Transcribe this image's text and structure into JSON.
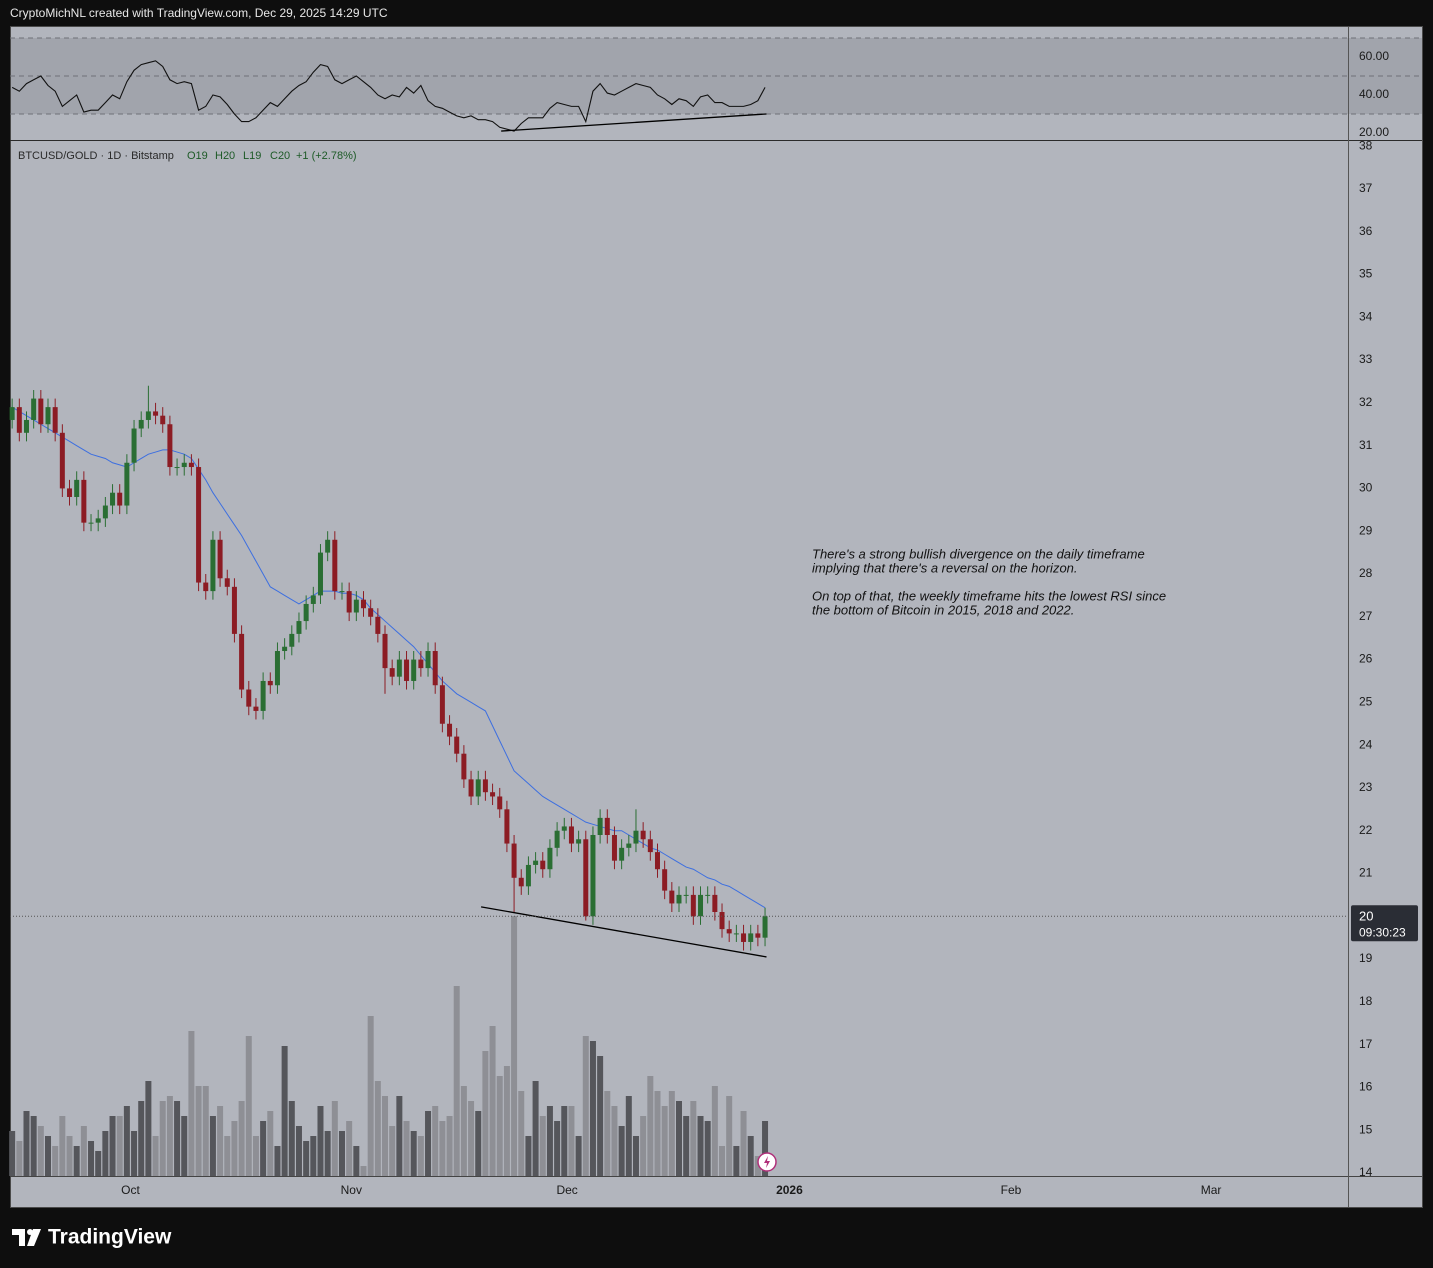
{
  "header": "CryptoMichNL created with TradingView.com, Dec 29, 2025 14:29 UTC",
  "footer_brand": "TradingView",
  "chart_data": {
    "type": "candlestick",
    "symbol": "BTCUSD/GOLD · 1D · Bitstamp",
    "legend_values": [
      "O19",
      "H20",
      "L19",
      "C20",
      "+1 (+2.78%)"
    ],
    "last_price_label": [
      "20",
      "09:30:23"
    ],
    "annotation": [
      "There's a strong bullish divergence on the daily timeframe",
      "implying that there's a reversal on the horizon.",
      "On top of that, the weekly timeframe hits the lowest RSI since",
      "the bottom of Bitcoin in 2015, 2018 and 2022."
    ],
    "colors": {
      "up": "#2a6e33",
      "down": "#8c1c24",
      "ma": "#3d6fe0",
      "volume_up": "#55565b",
      "volume_down": "#8e8f95",
      "rsi": "#111111"
    },
    "xlim": [
      -0.3,
      186.3
    ],
    "xticks": [
      {
        "value": 16.5,
        "label": "Oct"
      },
      {
        "value": 47.3,
        "label": "Nov"
      },
      {
        "value": 77.4,
        "label": "Dec"
      },
      {
        "value": 108.4,
        "label": "2026"
      },
      {
        "value": 139.3,
        "label": "Feb"
      },
      {
        "value": 167.2,
        "label": "Mar"
      }
    ],
    "ylim": [
      13.93,
      38.12
    ],
    "yticks": [
      14,
      15,
      16,
      17,
      18,
      19,
      20,
      21,
      22,
      23,
      24,
      25,
      26,
      27,
      28,
      29,
      30,
      31,
      32,
      33,
      34,
      35,
      36,
      37,
      38
    ],
    "open": [
      31.6,
      31.9,
      31.3,
      31.6,
      32.1,
      31.5,
      31.9,
      31.3,
      30.0,
      29.8,
      30.2,
      29.2,
      29.2,
      29.3,
      29.6,
      29.9,
      29.6,
      30.6,
      31.4,
      31.6,
      31.8,
      31.7,
      31.5,
      30.5,
      30.5,
      30.6,
      30.5,
      27.8,
      27.6,
      28.8,
      27.9,
      27.7,
      26.6,
      25.3,
      24.9,
      24.8,
      25.5,
      25.4,
      26.2,
      26.3,
      26.6,
      26.9,
      27.3,
      27.5,
      28.5,
      28.8,
      27.6,
      27.6,
      27.1,
      27.4,
      27.2,
      27.0,
      26.6,
      25.8,
      25.6,
      26.0,
      25.5,
      26.0,
      25.8,
      26.2,
      25.4,
      24.5,
      24.2,
      23.8,
      23.2,
      22.8,
      23.2,
      22.9,
      22.8,
      22.5,
      21.7,
      20.9,
      20.7,
      21.2,
      21.3,
      21.1,
      21.6,
      22.0,
      22.1,
      21.7,
      21.8,
      20.0,
      21.9,
      22.3,
      21.9,
      21.3,
      21.6,
      21.7,
      22.0,
      21.8,
      21.5,
      21.1,
      20.6,
      20.3,
      20.5,
      20.5,
      20.0,
      20.5,
      20.5,
      20.1,
      19.7,
      19.6,
      19.6,
      19.4,
      19.6,
      19.5
    ],
    "high": [
      32.1,
      32.1,
      31.8,
      32.3,
      32.3,
      32.1,
      32.1,
      31.5,
      30.2,
      30.4,
      30.4,
      29.4,
      29.5,
      29.8,
      30.1,
      30.1,
      30.8,
      31.6,
      31.8,
      32.4,
      32.0,
      31.9,
      31.7,
      30.7,
      30.8,
      30.8,
      30.7,
      28.0,
      29.0,
      29.0,
      28.1,
      27.9,
      26.8,
      25.5,
      25.1,
      25.7,
      25.7,
      26.4,
      26.5,
      26.8,
      27.1,
      27.5,
      27.7,
      28.7,
      29.0,
      29.0,
      27.8,
      27.8,
      27.6,
      27.6,
      27.4,
      27.2,
      26.8,
      26.0,
      26.2,
      26.2,
      26.2,
      26.2,
      26.4,
      26.4,
      25.6,
      24.7,
      24.4,
      24.0,
      23.4,
      23.4,
      23.4,
      23.1,
      23.0,
      22.7,
      21.9,
      21.1,
      21.4,
      21.5,
      21.5,
      21.8,
      22.2,
      22.3,
      22.3,
      22.0,
      22.0,
      22.1,
      22.5,
      22.5,
      22.1,
      21.8,
      21.9,
      22.5,
      22.2,
      22.0,
      21.7,
      21.3,
      20.8,
      20.7,
      20.7,
      20.7,
      20.7,
      20.7,
      20.7,
      20.3,
      19.9,
      19.8,
      19.8,
      19.8,
      19.8,
      20.2
    ],
    "low": [
      31.4,
      31.1,
      31.1,
      31.4,
      31.3,
      31.3,
      31.1,
      29.8,
      29.6,
      29.6,
      29.0,
      29.0,
      29.0,
      29.1,
      29.4,
      29.4,
      29.4,
      30.4,
      31.2,
      31.4,
      31.5,
      31.3,
      30.3,
      30.3,
      30.3,
      30.3,
      27.6,
      27.4,
      27.4,
      27.7,
      27.5,
      26.4,
      25.1,
      24.7,
      24.6,
      24.6,
      25.2,
      25.2,
      26.0,
      26.1,
      26.4,
      26.7,
      27.1,
      27.3,
      28.3,
      27.4,
      27.4,
      26.9,
      26.9,
      27.0,
      26.8,
      26.4,
      25.2,
      25.4,
      25.4,
      25.3,
      25.3,
      25.6,
      25.6,
      25.2,
      24.3,
      24.0,
      23.6,
      23.0,
      22.6,
      22.6,
      22.7,
      22.6,
      22.3,
      21.5,
      20.1,
      20.5,
      20.5,
      21.0,
      20.9,
      20.9,
      21.4,
      21.8,
      21.5,
      21.5,
      19.9,
      19.8,
      21.7,
      21.7,
      21.1,
      21.1,
      21.4,
      21.5,
      21.6,
      21.3,
      20.9,
      20.4,
      20.1,
      20.1,
      20.3,
      19.8,
      19.8,
      20.3,
      19.9,
      19.5,
      19.4,
      19.4,
      19.2,
      19.2,
      19.3,
      19.3
    ],
    "close": [
      31.9,
      31.3,
      31.6,
      32.1,
      31.5,
      31.9,
      31.3,
      30.0,
      29.8,
      30.2,
      29.2,
      29.2,
      29.3,
      29.6,
      29.9,
      29.6,
      30.6,
      31.4,
      31.6,
      31.8,
      31.7,
      31.5,
      30.5,
      30.5,
      30.6,
      30.5,
      27.8,
      27.6,
      28.8,
      27.9,
      27.7,
      26.6,
      25.3,
      24.9,
      24.8,
      25.5,
      25.4,
      26.2,
      26.3,
      26.6,
      26.9,
      27.3,
      27.5,
      28.5,
      28.8,
      27.6,
      27.6,
      27.1,
      27.4,
      27.2,
      27.0,
      26.6,
      25.8,
      25.6,
      26.0,
      25.5,
      26.0,
      25.8,
      26.2,
      25.4,
      24.5,
      24.2,
      23.8,
      23.2,
      22.8,
      23.2,
      22.9,
      22.8,
      22.5,
      21.7,
      20.9,
      20.7,
      21.2,
      21.3,
      21.1,
      21.6,
      22.0,
      22.1,
      21.7,
      21.8,
      20.0,
      21.9,
      22.3,
      21.9,
      21.3,
      21.6,
      21.7,
      22.0,
      21.8,
      21.5,
      21.1,
      20.6,
      20.3,
      20.5,
      20.5,
      20.0,
      20.5,
      20.5,
      20.1,
      19.7,
      19.6,
      19.6,
      19.4,
      19.6,
      19.5,
      20.0
    ],
    "ma": [
      31.9,
      31.8,
      31.7,
      31.6,
      31.5,
      31.4,
      31.3,
      31.2,
      31.1,
      31.0,
      30.9,
      30.8,
      30.75,
      30.7,
      30.6,
      30.55,
      30.5,
      30.6,
      30.7,
      30.8,
      30.85,
      30.9,
      30.9,
      30.85,
      30.8,
      30.7,
      30.45,
      30.2,
      29.9,
      29.65,
      29.4,
      29.15,
      28.9,
      28.6,
      28.3,
      28.0,
      27.7,
      27.6,
      27.5,
      27.4,
      27.3,
      27.4,
      27.5,
      27.6,
      27.6,
      27.6,
      27.55,
      27.55,
      27.5,
      27.4,
      27.2,
      27.05,
      26.9,
      26.75,
      26.6,
      26.45,
      26.3,
      26.1,
      25.9,
      25.7,
      25.5,
      25.35,
      25.2,
      25.1,
      25.0,
      24.9,
      24.8,
      24.45,
      24.1,
      23.75,
      23.4,
      23.25,
      23.1,
      22.95,
      22.8,
      22.7,
      22.6,
      22.5,
      22.4,
      22.3,
      22.2,
      22.15,
      22.1,
      22.05,
      22.0,
      22.0,
      21.9,
      21.8,
      21.7,
      21.6,
      21.55,
      21.45,
      21.35,
      21.25,
      21.15,
      21.1,
      21.0,
      20.9,
      20.85,
      20.75,
      20.7,
      20.6,
      20.5,
      20.4,
      20.3,
      20.2
    ],
    "volume": [
      45,
      35,
      65,
      60,
      50,
      40,
      30,
      60,
      40,
      30,
      50,
      35,
      25,
      45,
      60,
      60,
      70,
      45,
      75,
      95,
      40,
      75,
      80,
      75,
      60,
      145,
      90,
      90,
      60,
      70,
      40,
      55,
      75,
      140,
      40,
      55,
      65,
      30,
      130,
      75,
      50,
      35,
      40,
      70,
      45,
      75,
      45,
      55,
      30,
      10,
      160,
      95,
      80,
      50,
      80,
      55,
      45,
      40,
      65,
      70,
      55,
      60,
      190,
      90,
      75,
      65,
      125,
      150,
      100,
      110,
      260,
      85,
      40,
      95,
      60,
      70,
      55,
      70,
      70,
      40,
      140,
      135,
      120,
      85,
      70,
      50,
      80,
      40,
      60,
      100,
      85,
      70,
      85,
      75,
      60,
      75,
      60,
      55,
      90,
      30,
      80,
      30,
      65,
      40,
      20,
      55
    ],
    "trendlines": [
      {
        "x": [
          65.4,
          105.2
        ],
        "y": [
          20.22,
          19.05
        ]
      }
    ],
    "rsi": {
      "ylim": [
        16.3,
        75.8
      ],
      "yticks": [
        {
          "value": 60,
          "label": "60.00"
        },
        {
          "value": 40,
          "label": "40.00"
        },
        {
          "value": 20,
          "label": "20.00"
        }
      ],
      "bands": [
        70,
        50,
        30
      ],
      "values": [
        44,
        42,
        46,
        48,
        50,
        45,
        42,
        34,
        37,
        40,
        31,
        32,
        32,
        36,
        40,
        38,
        47,
        53,
        56,
        57,
        58,
        55,
        48,
        46,
        47,
        46,
        32,
        34,
        40,
        39,
        35,
        30,
        26,
        26,
        28,
        32,
        36,
        34,
        38,
        42,
        45,
        47,
        52,
        56,
        55,
        48,
        46,
        48,
        50,
        47,
        44,
        40,
        38,
        40,
        39,
        44,
        41,
        45,
        37,
        34,
        33,
        31,
        29,
        28,
        29,
        27,
        27,
        26,
        23,
        22,
        21,
        25,
        28,
        28,
        28,
        33,
        36,
        35,
        34,
        34,
        26,
        42,
        46,
        41,
        40,
        42,
        44,
        46,
        45,
        44,
        40,
        38,
        35,
        38,
        37,
        34,
        39,
        40,
        36,
        36,
        34,
        34,
        34,
        35,
        37,
        44
      ],
      "trendlines": [
        {
          "x": [
            68.2,
            105.2
          ],
          "y": [
            21,
            30
          ]
        }
      ]
    }
  }
}
